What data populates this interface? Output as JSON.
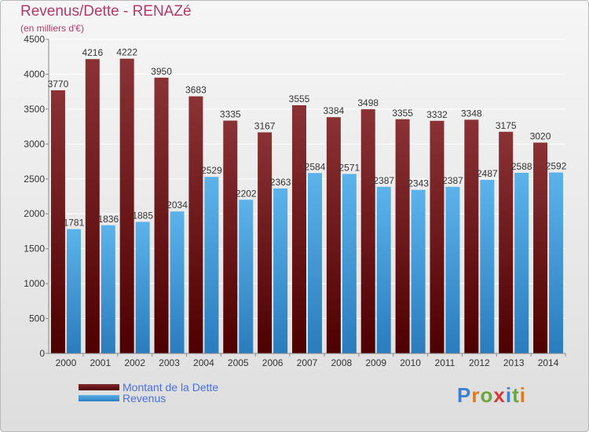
{
  "title": "Revenus/Dette - RENAZé",
  "subtitle": "(en milliers d'€)",
  "logo": "Proxiti",
  "colors": {
    "dette": "#7a2326",
    "revenus": "#4aa3e0",
    "title": "#b03a6a",
    "legend_text": "#4a6fdc"
  },
  "chart_data": {
    "type": "bar",
    "title": "Revenus/Dette - RENAZé",
    "subtitle": "(en milliers d'€)",
    "categories": [
      "2000",
      "2001",
      "2002",
      "2003",
      "2004",
      "2005",
      "2006",
      "2007",
      "2008",
      "2009",
      "2010",
      "2011",
      "2012",
      "2013",
      "2014"
    ],
    "series": [
      {
        "name": "Montant de la Dette",
        "values": [
          3770,
          4216,
          4222,
          3950,
          3683,
          3335,
          3167,
          3555,
          3384,
          3498,
          3355,
          3332,
          3348,
          3175,
          3020
        ]
      },
      {
        "name": "Revenus",
        "values": [
          1781,
          1836,
          1885,
          2034,
          2529,
          2202,
          2363,
          2584,
          2571,
          2387,
          2343,
          2387,
          2487,
          2588,
          2592
        ]
      }
    ],
    "ylim": [
      0,
      4500
    ],
    "yticks": [
      0,
      500,
      1000,
      1500,
      2000,
      2500,
      3000,
      3500,
      4000,
      4500
    ],
    "grid": true,
    "legend": "bottom-left"
  }
}
